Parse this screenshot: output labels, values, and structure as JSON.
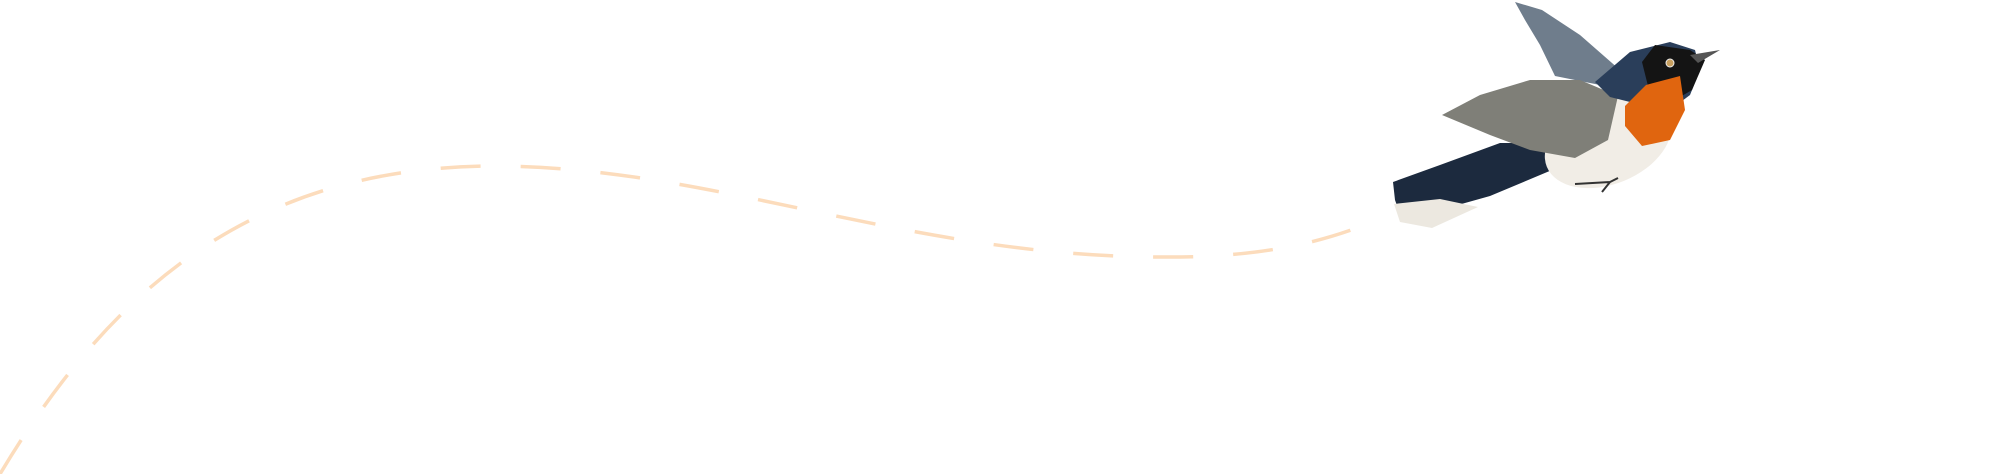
{
  "illustration": {
    "subject": "bird-in-flight",
    "colors": {
      "trail": "#fcdcbc",
      "background": "#ffffff",
      "navy": "#1c2a3e",
      "throat": "#e0650f",
      "belly": "#f1ede6",
      "wing": "#7f7f78"
    }
  }
}
